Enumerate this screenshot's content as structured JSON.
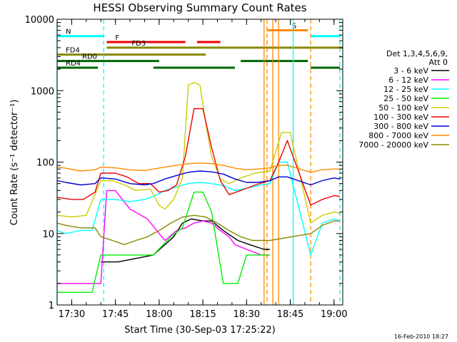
{
  "chart_data": {
    "type": "line",
    "title": "HESSI Observing Summary Count Rates",
    "xlabel": "Start Time (30-Sep-03 17:25:22)",
    "ylabel": "Count Rate (s⁻¹ detector⁻¹)",
    "ylim": [
      1,
      10000
    ],
    "yscale": "log",
    "xlim": [
      "17:25",
      "19:03"
    ],
    "x_ticks": [
      "17:30",
      "17:45",
      "18:00",
      "18:15",
      "18:30",
      "18:45",
      "19:00"
    ],
    "y_ticks": [
      "1",
      "10",
      "100",
      "1000",
      "10000"
    ],
    "footer": "16-Feb-2010 18:27",
    "legend": {
      "header_1": "Det 1,3,4,5,6,9,",
      "header_2": "Att 0",
      "placement": "right"
    },
    "series": [
      {
        "name": "3 - 6 keV",
        "color": "#000000",
        "points": [
          [
            "17:40",
            4
          ],
          [
            "17:46",
            4
          ],
          [
            "17:58",
            5
          ],
          [
            "18:05",
            9
          ],
          [
            "18:08",
            14
          ],
          [
            "18:11",
            16
          ],
          [
            "18:15",
            15
          ],
          [
            "18:18",
            15
          ],
          [
            "18:22",
            11
          ],
          [
            "18:27",
            8
          ],
          [
            "18:31",
            7
          ],
          [
            "18:36",
            6
          ],
          [
            "18:38",
            6
          ]
        ]
      },
      {
        "name": "6 - 12 keV",
        "color": "#ff00ff",
        "points": [
          [
            "17:25",
            2
          ],
          [
            "17:37",
            2
          ],
          [
            "17:40",
            2
          ],
          [
            "17:42",
            40
          ],
          [
            "17:45",
            40
          ],
          [
            "17:50",
            22
          ],
          [
            "17:56",
            16
          ],
          [
            "18:00",
            10
          ],
          [
            "18:02",
            8
          ],
          [
            "18:06",
            11
          ],
          [
            "18:09",
            12
          ],
          [
            "18:12",
            14
          ],
          [
            "18:15",
            15
          ],
          [
            "18:18",
            14
          ],
          [
            "18:21",
            11
          ],
          [
            "18:24",
            9
          ],
          [
            "18:26",
            7
          ],
          [
            "18:30",
            6
          ],
          [
            "18:35",
            5
          ],
          [
            "18:38",
            5
          ]
        ]
      },
      {
        "name": "12 - 25 keV",
        "color": "#00ffff",
        "points": [
          [
            "17:25",
            11
          ],
          [
            "17:28",
            10
          ],
          [
            "17:33",
            11
          ],
          [
            "17:37",
            11
          ],
          [
            "17:40",
            30
          ],
          [
            "17:45",
            30
          ],
          [
            "17:50",
            28
          ],
          [
            "17:55",
            30
          ],
          [
            "17:58",
            33
          ],
          [
            "18:02",
            40
          ],
          [
            "18:06",
            45
          ],
          [
            "18:10",
            50
          ],
          [
            "18:14",
            52
          ],
          [
            "18:18",
            50
          ],
          [
            "18:22",
            47
          ],
          [
            "18:26",
            40
          ],
          [
            "18:30",
            43
          ],
          [
            "18:34",
            47
          ],
          [
            "18:38",
            50
          ],
          [
            "18:41",
            100
          ],
          [
            "18:44",
            100
          ],
          [
            "18:52",
            5
          ],
          [
            "18:56",
            14
          ],
          [
            "19:00",
            16
          ],
          [
            "19:02",
            15
          ]
        ]
      },
      {
        "name": "25 - 50 keV",
        "color": "#00ee00",
        "points": [
          [
            "17:25",
            1.5
          ],
          [
            "17:37",
            1.5
          ],
          [
            "17:40",
            5
          ],
          [
            "17:58",
            5
          ],
          [
            "18:04",
            9
          ],
          [
            "18:08",
            12
          ],
          [
            "18:12",
            38
          ],
          [
            "18:15",
            38
          ],
          [
            "18:18",
            20
          ],
          [
            "18:22",
            2
          ],
          [
            "18:27",
            2
          ],
          [
            "18:30",
            5
          ],
          [
            "18:38",
            5
          ]
        ]
      },
      {
        "name": "50 - 100 keV",
        "color": "#cccc00",
        "points": [
          [
            "17:25",
            18
          ],
          [
            "17:30",
            17
          ],
          [
            "17:35",
            18
          ],
          [
            "17:40",
            55
          ],
          [
            "17:44",
            55
          ],
          [
            "17:48",
            48
          ],
          [
            "17:52",
            40
          ],
          [
            "17:57",
            42
          ],
          [
            "18:00",
            25
          ],
          [
            "18:02",
            22
          ],
          [
            "18:05",
            30
          ],
          [
            "18:08",
            60
          ],
          [
            "18:10",
            1200
          ],
          [
            "18:12",
            1300
          ],
          [
            "18:14",
            1200
          ],
          [
            "18:16",
            350
          ],
          [
            "18:18",
            120
          ],
          [
            "18:21",
            58
          ],
          [
            "18:24",
            50
          ],
          [
            "18:28",
            60
          ],
          [
            "18:33",
            70
          ],
          [
            "18:38",
            75
          ],
          [
            "18:42",
            260
          ],
          [
            "18:45",
            260
          ],
          [
            "18:52",
            14
          ],
          [
            "18:56",
            18
          ],
          [
            "19:00",
            20
          ],
          [
            "19:02",
            19
          ]
        ]
      },
      {
        "name": "100 - 300 keV",
        "color": "#ee0000",
        "points": [
          [
            "17:25",
            32
          ],
          [
            "17:30",
            30
          ],
          [
            "17:34",
            30
          ],
          [
            "17:38",
            38
          ],
          [
            "17:40",
            70
          ],
          [
            "17:45",
            70
          ],
          [
            "17:49",
            62
          ],
          [
            "17:53",
            50
          ],
          [
            "17:57",
            50
          ],
          [
            "18:00",
            38
          ],
          [
            "18:03",
            40
          ],
          [
            "18:06",
            48
          ],
          [
            "18:09",
            120
          ],
          [
            "18:12",
            560
          ],
          [
            "18:15",
            560
          ],
          [
            "18:18",
            160
          ],
          [
            "18:21",
            55
          ],
          [
            "18:24",
            35
          ],
          [
            "18:28",
            40
          ],
          [
            "18:33",
            48
          ],
          [
            "18:38",
            55
          ],
          [
            "18:41",
            100
          ],
          [
            "18:44",
            200
          ],
          [
            "18:52",
            25
          ],
          [
            "18:56",
            30
          ],
          [
            "19:00",
            34
          ],
          [
            "19:02",
            33
          ]
        ]
      },
      {
        "name": "300 - 800 keV",
        "color": "#0000cc",
        "points": [
          [
            "17:25",
            55
          ],
          [
            "17:28",
            52
          ],
          [
            "17:33",
            48
          ],
          [
            "17:38",
            50
          ],
          [
            "17:40",
            60
          ],
          [
            "17:45",
            58
          ],
          [
            "17:50",
            50
          ],
          [
            "17:55",
            48
          ],
          [
            "17:58",
            50
          ],
          [
            "18:02",
            58
          ],
          [
            "18:06",
            65
          ],
          [
            "18:10",
            72
          ],
          [
            "18:14",
            75
          ],
          [
            "18:18",
            73
          ],
          [
            "18:22",
            68
          ],
          [
            "18:26",
            58
          ],
          [
            "18:30",
            52
          ],
          [
            "18:34",
            52
          ],
          [
            "18:38",
            55
          ],
          [
            "18:41",
            62
          ],
          [
            "18:44",
            62
          ],
          [
            "18:52",
            48
          ],
          [
            "18:56",
            55
          ],
          [
            "19:00",
            60
          ],
          [
            "19:02",
            58
          ]
        ]
      },
      {
        "name": "800 - 7000 keV",
        "color": "#ff8800",
        "points": [
          [
            "17:25",
            85
          ],
          [
            "17:28",
            82
          ],
          [
            "17:33",
            75
          ],
          [
            "17:38",
            78
          ],
          [
            "17:40",
            85
          ],
          [
            "17:45",
            83
          ],
          [
            "17:50",
            78
          ],
          [
            "17:55",
            76
          ],
          [
            "17:58",
            80
          ],
          [
            "18:02",
            85
          ],
          [
            "18:06",
            90
          ],
          [
            "18:10",
            95
          ],
          [
            "18:14",
            97
          ],
          [
            "18:18",
            95
          ],
          [
            "18:22",
            90
          ],
          [
            "18:26",
            82
          ],
          [
            "18:30",
            78
          ],
          [
            "18:34",
            80
          ],
          [
            "18:38",
            83
          ],
          [
            "18:41",
            90
          ],
          [
            "18:44",
            90
          ],
          [
            "18:52",
            72
          ],
          [
            "18:56",
            78
          ],
          [
            "19:00",
            80
          ],
          [
            "19:02",
            80
          ]
        ]
      },
      {
        "name": "7000 - 20000 keV",
        "color": "#888800",
        "points": [
          [
            "17:25",
            14
          ],
          [
            "17:28",
            13
          ],
          [
            "17:33",
            12
          ],
          [
            "17:38",
            12
          ],
          [
            "17:40",
            9
          ],
          [
            "17:44",
            8
          ],
          [
            "17:48",
            7
          ],
          [
            "17:52",
            8
          ],
          [
            "17:56",
            9
          ],
          [
            "18:00",
            11
          ],
          [
            "18:04",
            14
          ],
          [
            "18:08",
            17
          ],
          [
            "18:12",
            18
          ],
          [
            "18:16",
            17
          ],
          [
            "18:20",
            14
          ],
          [
            "18:24",
            11
          ],
          [
            "18:28",
            9
          ],
          [
            "18:32",
            8
          ],
          [
            "18:36",
            8
          ],
          [
            "18:38",
            8
          ],
          [
            "18:52",
            10
          ],
          [
            "18:56",
            13
          ],
          [
            "19:00",
            15
          ],
          [
            "19:02",
            15
          ]
        ]
      }
    ],
    "flags": [
      {
        "label": "N",
        "color": "#00ffff",
        "level": 5800,
        "segments": [
          [
            "17:25",
            "17:41"
          ],
          [
            "18:52",
            "19:02"
          ]
        ]
      },
      {
        "label": "S",
        "color": "#ff8800",
        "level": 7000,
        "segments": [
          [
            "18:37",
            "18:51"
          ]
        ]
      },
      {
        "label": "F",
        "color": "#ee0000",
        "level": 4800,
        "segments": [
          [
            "17:42",
            "18:09"
          ],
          [
            "18:13",
            "18:21"
          ]
        ]
      },
      {
        "label": "FD3",
        "color": "#888800",
        "level": 4000,
        "segments": [
          [
            "17:42",
            "19:03"
          ]
        ]
      },
      {
        "label": "FD4",
        "color": "#888800",
        "level": 3200,
        "segments": [
          [
            "17:25",
            "18:16"
          ]
        ]
      },
      {
        "label": "RD0",
        "color": "#006600",
        "level": 2600,
        "segments": [
          [
            "17:25",
            "18:00"
          ],
          [
            "18:28",
            "18:51"
          ]
        ]
      },
      {
        "label": "RD4",
        "color": "#006600",
        "level": 2100,
        "segments": [
          [
            "17:25",
            "17:39"
          ],
          [
            "17:58",
            "18:26"
          ],
          [
            "18:52",
            "19:02"
          ]
        ]
      }
    ],
    "vertical_markers": [
      {
        "time": "17:25",
        "color": "#00ffff",
        "style": "solid"
      },
      {
        "time": "17:41",
        "color": "#00ffff",
        "style": "dashed"
      },
      {
        "time": "18:36",
        "color": "#ff8800",
        "style": "solid"
      },
      {
        "time": "18:37",
        "color": "#ff8800",
        "style": "dashed"
      },
      {
        "time": "18:39",
        "color": "#ff8800",
        "style": "solid"
      },
      {
        "time": "18:41",
        "color": "#ff8800",
        "style": "solid"
      },
      {
        "time": "18:46",
        "color": "#00ffff",
        "style": "solid"
      },
      {
        "time": "18:52",
        "color": "#ff8800",
        "style": "dashed"
      },
      {
        "time": "19:02",
        "color": "#00ffff",
        "style": "dashed"
      }
    ]
  }
}
